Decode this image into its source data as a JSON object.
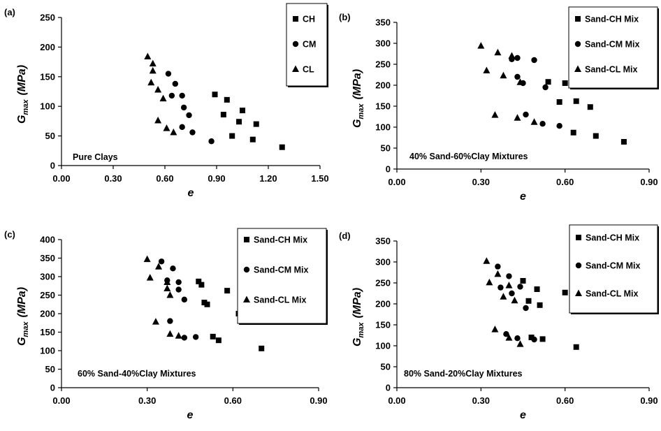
{
  "chart_data": [
    {
      "panel_label": "(a)",
      "type": "scatter",
      "annotation": "Pure Clays",
      "xlabel": "e",
      "ylabel_main": "G",
      "ylabel_sub": "max",
      "ylabel_unit": "(MPa)",
      "xlim": [
        0.0,
        1.5
      ],
      "ylim": [
        0,
        250
      ],
      "xticks": [
        "0.00",
        "0.30",
        "0.60",
        "0.90",
        "1.20",
        "1.50"
      ],
      "xtick_values": [
        0.0,
        0.3,
        0.6,
        0.9,
        1.2,
        1.5
      ],
      "yticks": [
        "0",
        "50",
        "100",
        "150",
        "200",
        "250"
      ],
      "ytick_values": [
        0,
        50,
        100,
        150,
        200,
        250
      ],
      "legend_position": "top-right",
      "series": [
        {
          "name": "CH",
          "marker": "square",
          "points": [
            [
              0.89,
              120
            ],
            [
              0.96,
              111
            ],
            [
              0.94,
              86
            ],
            [
              1.05,
              93
            ],
            [
              1.03,
              74
            ],
            [
              1.13,
              70
            ],
            [
              0.99,
              50
            ],
            [
              1.11,
              44
            ],
            [
              1.28,
              31
            ]
          ]
        },
        {
          "name": "CM",
          "marker": "circle",
          "points": [
            [
              0.62,
              155
            ],
            [
              0.66,
              138
            ],
            [
              0.64,
              118
            ],
            [
              0.7,
              118
            ],
            [
              0.71,
              98
            ],
            [
              0.74,
              85
            ],
            [
              0.7,
              65
            ],
            [
              0.76,
              56
            ],
            [
              0.87,
              41
            ]
          ]
        },
        {
          "name": "CL",
          "marker": "triangle",
          "points": [
            [
              0.5,
              184
            ],
            [
              0.53,
              172
            ],
            [
              0.53,
              160
            ],
            [
              0.56,
              128
            ],
            [
              0.52,
              140
            ],
            [
              0.59,
              113
            ],
            [
              0.56,
              76
            ],
            [
              0.61,
              63
            ],
            [
              0.65,
              56
            ]
          ]
        }
      ]
    },
    {
      "panel_label": "(b)",
      "type": "scatter",
      "annotation": "40% Sand-60%Clay Mixtures",
      "xlabel": "e",
      "ylabel_main": "G",
      "ylabel_sub": "max",
      "ylabel_unit": "(MPa)",
      "xlim": [
        0.0,
        0.9
      ],
      "ylim": [
        0,
        350
      ],
      "xticks": [
        "0.00",
        "0.30",
        "0.60",
        "0.90"
      ],
      "xtick_values": [
        0.0,
        0.3,
        0.6,
        0.9
      ],
      "yticks": [
        "0",
        "50",
        "100",
        "150",
        "200",
        "250",
        "300",
        "350"
      ],
      "ytick_values": [
        0,
        50,
        100,
        150,
        200,
        250,
        300,
        350
      ],
      "legend_position": "top-right",
      "series": [
        {
          "name": "Sand-CH Mix",
          "marker": "square",
          "points": [
            [
              0.54,
              208
            ],
            [
              0.6,
              205
            ],
            [
              0.58,
              160
            ],
            [
              0.64,
              162
            ],
            [
              0.69,
              148
            ],
            [
              0.63,
              87
            ],
            [
              0.71,
              79
            ],
            [
              0.81,
              65
            ]
          ]
        },
        {
          "name": "Sand-CM Mix",
          "marker": "circle",
          "points": [
            [
              0.41,
              262
            ],
            [
              0.43,
              265
            ],
            [
              0.49,
              260
            ],
            [
              0.43,
              220
            ],
            [
              0.45,
              205
            ],
            [
              0.53,
              195
            ],
            [
              0.46,
              130
            ],
            [
              0.52,
              108
            ],
            [
              0.58,
              103
            ]
          ]
        },
        {
          "name": "Sand-CL Mix",
          "marker": "triangle",
          "points": [
            [
              0.3,
              294
            ],
            [
              0.36,
              278
            ],
            [
              0.41,
              270
            ],
            [
              0.32,
              235
            ],
            [
              0.38,
              223
            ],
            [
              0.44,
              207
            ],
            [
              0.35,
              129
            ],
            [
              0.43,
              122
            ],
            [
              0.49,
              112
            ]
          ]
        }
      ]
    },
    {
      "panel_label": "(c)",
      "type": "scatter",
      "annotation": "60% Sand-40%Clay Mixtures",
      "xlabel": "e",
      "ylabel_main": "G",
      "ylabel_sub": "max",
      "ylabel_unit": "(MPa)",
      "xlim": [
        0.0,
        0.9
      ],
      "ylim": [
        0,
        400
      ],
      "xticks": [
        "0.00",
        "0.30",
        "0.60",
        "0.90"
      ],
      "xtick_values": [
        0.0,
        0.3,
        0.6,
        0.9
      ],
      "yticks": [
        "0",
        "50",
        "100",
        "150",
        "200",
        "250",
        "300",
        "350",
        "400"
      ],
      "ytick_values": [
        0,
        50,
        100,
        150,
        200,
        250,
        300,
        350,
        400
      ],
      "legend_position": "top-right",
      "series": [
        {
          "name": "Sand-CH Mix",
          "marker": "square",
          "points": [
            [
              0.48,
              287
            ],
            [
              0.49,
              278
            ],
            [
              0.58,
              262
            ],
            [
              0.5,
              230
            ],
            [
              0.51,
              225
            ],
            [
              0.62,
              200
            ],
            [
              0.53,
              138
            ],
            [
              0.55,
              128
            ],
            [
              0.7,
              106
            ]
          ]
        },
        {
          "name": "Sand-CM Mix",
          "marker": "circle",
          "points": [
            [
              0.35,
              341
            ],
            [
              0.39,
              322
            ],
            [
              0.37,
              290
            ],
            [
              0.41,
              285
            ],
            [
              0.41,
              265
            ],
            [
              0.43,
              238
            ],
            [
              0.38,
              180
            ],
            [
              0.43,
              135
            ],
            [
              0.47,
              137
            ]
          ]
        },
        {
          "name": "Sand-CL Mix",
          "marker": "triangle",
          "points": [
            [
              0.3,
              347
            ],
            [
              0.34,
              327
            ],
            [
              0.37,
              285
            ],
            [
              0.31,
              297
            ],
            [
              0.37,
              268
            ],
            [
              0.38,
              250
            ],
            [
              0.33,
              178
            ],
            [
              0.38,
              145
            ],
            [
              0.41,
              140
            ]
          ]
        }
      ]
    },
    {
      "panel_label": "(d)",
      "type": "scatter",
      "annotation": "80% Sand-20%Clay Mixtures",
      "xlabel": "e",
      "ylabel_main": "G",
      "ylabel_sub": "max",
      "ylabel_unit": "(MPa)",
      "xlim": [
        0.0,
        0.9
      ],
      "ylim": [
        0,
        350
      ],
      "xticks": [
        "0.00",
        "0.30",
        "0.60",
        "0.90"
      ],
      "xtick_values": [
        0.0,
        0.3,
        0.6,
        0.9
      ],
      "yticks": [
        "0",
        "50",
        "100",
        "150",
        "200",
        "250",
        "300",
        "350"
      ],
      "ytick_values": [
        0,
        50,
        100,
        150,
        200,
        250,
        300,
        350
      ],
      "legend_position": "top-right",
      "series": [
        {
          "name": "Sand-CH Mix",
          "marker": "square",
          "points": [
            [
              0.45,
              255
            ],
            [
              0.5,
              235
            ],
            [
              0.6,
              227
            ],
            [
              0.47,
              207
            ],
            [
              0.51,
              197
            ],
            [
              0.48,
              120
            ],
            [
              0.52,
              116
            ],
            [
              0.64,
              97
            ]
          ]
        },
        {
          "name": "Sand-CM Mix",
          "marker": "circle",
          "points": [
            [
              0.36,
              289
            ],
            [
              0.4,
              266
            ],
            [
              0.37,
              239
            ],
            [
              0.41,
              225
            ],
            [
              0.44,
              241
            ],
            [
              0.46,
              190
            ],
            [
              0.39,
              128
            ],
            [
              0.43,
              118
            ],
            [
              0.49,
              115
            ]
          ]
        },
        {
          "name": "Sand-CL Mix",
          "marker": "triangle",
          "points": [
            [
              0.32,
              302
            ],
            [
              0.36,
              271
            ],
            [
              0.4,
              244
            ],
            [
              0.33,
              251
            ],
            [
              0.38,
              217
            ],
            [
              0.42,
              208
            ],
            [
              0.35,
              139
            ],
            [
              0.4,
              119
            ],
            [
              0.44,
              104
            ]
          ]
        }
      ]
    }
  ]
}
